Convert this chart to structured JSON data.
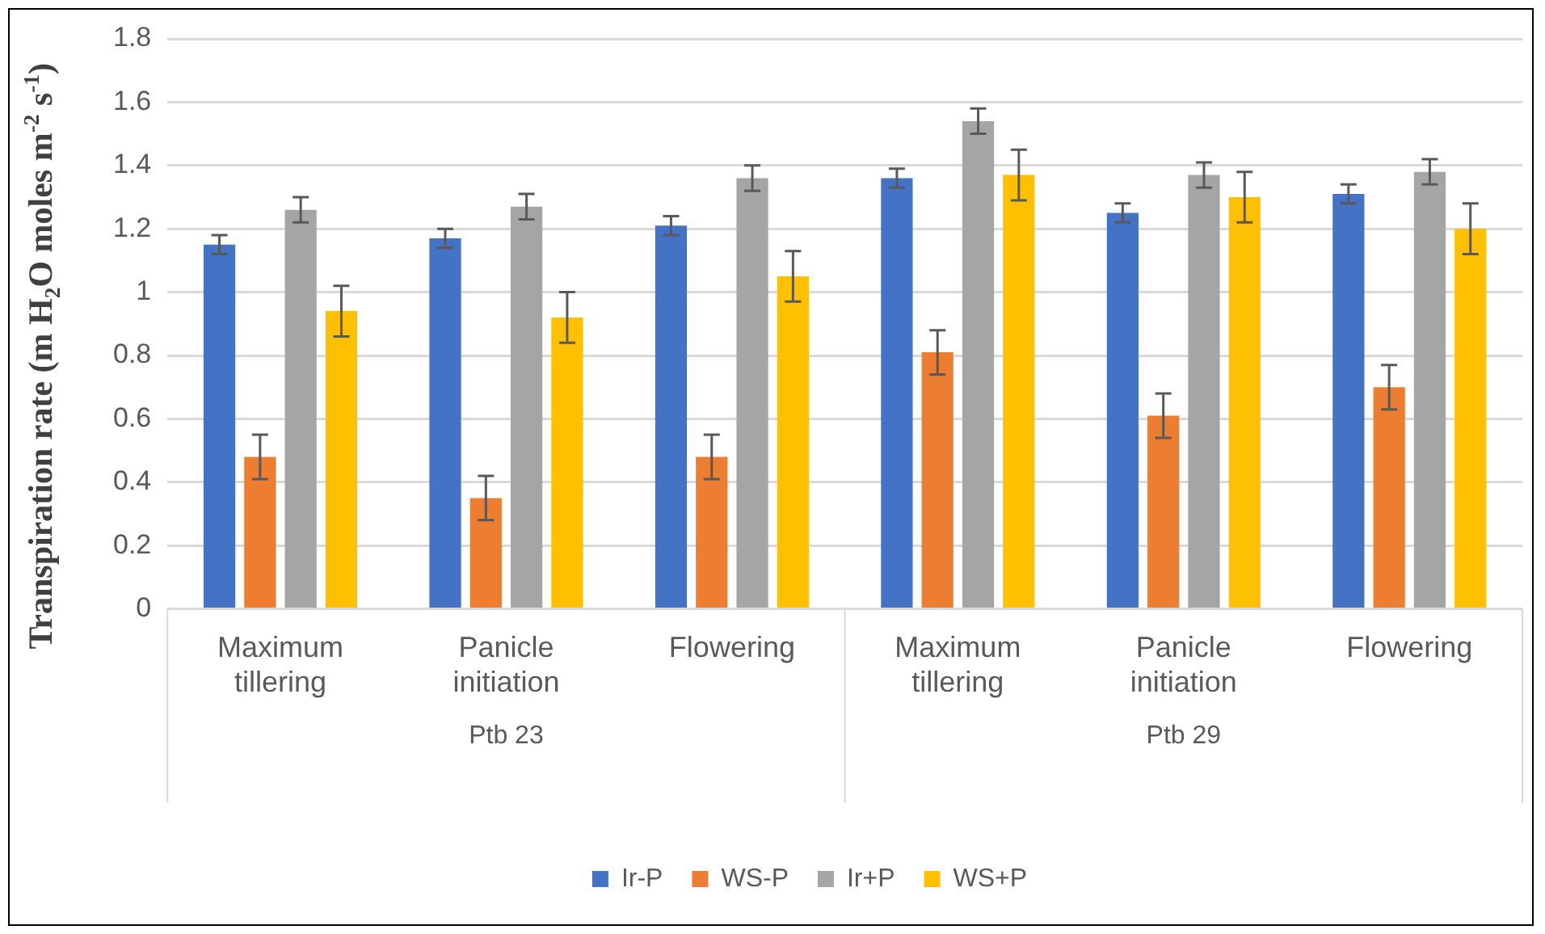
{
  "chart_data": {
    "type": "bar",
    "ylabel": "Transpiration rate (m H$_{2}$O moles m$^{-2}$ s$^{-1}$)",
    "categories": [
      "Maximum tillering",
      "Panicle initiation",
      "Flowering",
      "Maximum tillering",
      "Panicle initiation",
      "Flowering"
    ],
    "annotations": [
      "Ptb 23",
      "Ptb 29"
    ],
    "series": [
      {
        "name": "Ir-P",
        "color": "#4472c4",
        "values": [
          1.15,
          1.17,
          1.21,
          1.36,
          1.25,
          1.31
        ],
        "errors": [
          0.03,
          0.03,
          0.03,
          0.03,
          0.03,
          0.03
        ]
      },
      {
        "name": "WS-P",
        "color": "#ed7d31",
        "values": [
          0.48,
          0.35,
          0.48,
          0.81,
          0.61,
          0.7
        ],
        "errors": [
          0.07,
          0.07,
          0.07,
          0.07,
          0.07,
          0.07
        ]
      },
      {
        "name": "Ir+P",
        "color": "#a5a5a5",
        "values": [
          1.26,
          1.27,
          1.36,
          1.54,
          1.37,
          1.38
        ],
        "errors": [
          0.04,
          0.04,
          0.04,
          0.04,
          0.04,
          0.04
        ]
      },
      {
        "name": "WS+P",
        "color": "#ffc000",
        "values": [
          0.94,
          0.92,
          1.05,
          1.37,
          1.3,
          1.2
        ],
        "errors": [
          0.08,
          0.08,
          0.08,
          0.08,
          0.08,
          0.08
        ]
      }
    ],
    "ylim": [
      0,
      1.8
    ],
    "yticks": [
      0,
      0.2,
      0.4,
      0.6,
      0.8,
      1,
      1.2,
      1.4,
      1.6,
      1.8
    ],
    "grid": "y",
    "legend": "bottom"
  }
}
